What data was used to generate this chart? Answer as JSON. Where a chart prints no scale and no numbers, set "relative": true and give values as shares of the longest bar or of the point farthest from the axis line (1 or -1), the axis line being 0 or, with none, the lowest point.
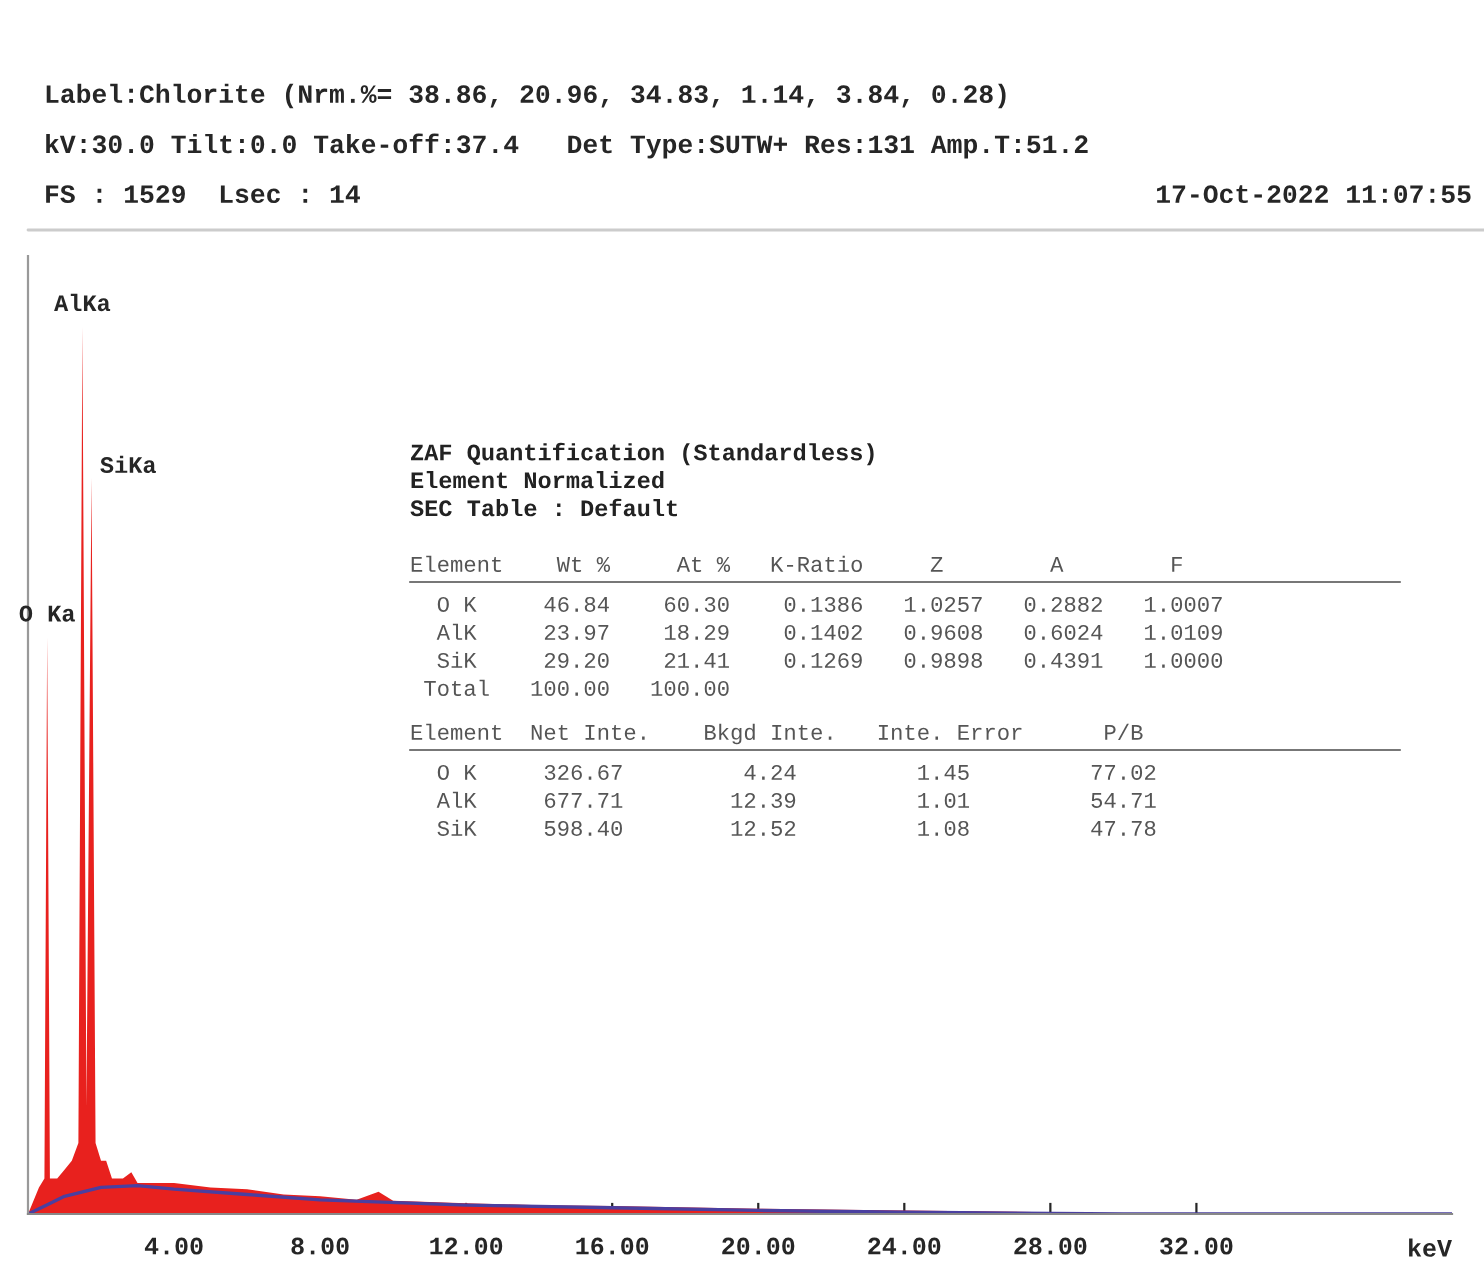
{
  "chart_data": {
    "type": "area",
    "xlabel": "keV",
    "xlim": [
      0,
      39
    ],
    "xticks": [
      {
        "value": 4,
        "label": "4.00"
      },
      {
        "value": 8,
        "label": "8.00"
      },
      {
        "value": 12,
        "label": "12.00"
      },
      {
        "value": 16,
        "label": "16.00"
      },
      {
        "value": 20,
        "label": "20.00"
      },
      {
        "value": 24,
        "label": "24.00"
      },
      {
        "value": 28,
        "label": "28.00"
      },
      {
        "value": 32,
        "label": "32.00"
      }
    ],
    "relative": true,
    "grid": false,
    "legend": false,
    "series": [
      {
        "color": "#e8211e",
        "x": [
          0,
          0.1,
          0.3,
          0.45,
          0.525,
          0.6,
          0.8,
          1.0,
          1.2,
          1.38,
          1.49,
          1.6,
          1.74,
          1.85,
          2.0,
          2.14,
          2.3,
          2.6,
          2.83,
          3.0,
          3.5,
          4,
          5,
          6,
          7,
          8,
          9,
          9.6,
          10,
          12,
          14,
          16,
          20,
          24,
          28,
          30,
          39
        ],
        "values": [
          0,
          0.01,
          0.03,
          0.04,
          0.65,
          0.04,
          0.04,
          0.05,
          0.06,
          0.08,
          1.0,
          0.12,
          0.83,
          0.08,
          0.06,
          0.06,
          0.04,
          0.04,
          0.047,
          0.035,
          0.035,
          0.035,
          0.03,
          0.028,
          0.022,
          0.02,
          0.016,
          0.025,
          0.015,
          0.012,
          0.01,
          0.009,
          0.006,
          0.004,
          0.002,
          0,
          0
        ]
      },
      {
        "type": "line",
        "color": "#4a3fa0",
        "x": [
          0,
          0.5,
          1,
          2,
          3,
          4,
          6,
          8,
          12,
          16,
          20,
          24,
          30,
          39
        ],
        "values": [
          0,
          0.01,
          0.02,
          0.03,
          0.032,
          0.028,
          0.022,
          0.016,
          0.01,
          0.007,
          0.004,
          0.002,
          0,
          0
        ]
      }
    ],
    "annotations": [
      "Label:Chlorite (Nrm.%= 38.86, 20.96, 34.83, 1.14, 3.84, 0.28)",
      "kV:30.0 Tilt:0.0 Take-off:37.4   Det Type:SUTW+ Res:131 Amp.T:51.2",
      "FS : 1529  Lsec : 14",
      "17-Oct-2022 11:07:55",
      {
        "text": "O Ka",
        "x": 0.525,
        "y": 0.65
      },
      {
        "text": "AlKa",
        "x": 1.49,
        "y": 1.0
      },
      {
        "text": "SiKa",
        "x": 1.74,
        "y": 0.83
      },
      "ZAF Quantification (Standardless)",
      "Element Normalized",
      "SEC Table : Default",
      "Element    Wt %     At %   K-Ratio     Z        A        F",
      "  O K     46.84    60.30    0.1386   1.0257   0.2882   1.0007",
      "  AlK     23.97    18.29    0.1402   0.9608   0.6024   1.0109",
      "  SiK     29.20    21.41    0.1269   0.9898   0.4391   1.0000",
      " Total   100.00   100.00",
      "Element  Net Inte.    Bkgd Inte.   Inte. Error      P/B",
      "  O K     326.67         4.24         1.45         77.02",
      "  AlK     677.71        12.39         1.01         54.71",
      "  SiK     598.40        12.52         1.08         47.78"
    ]
  }
}
